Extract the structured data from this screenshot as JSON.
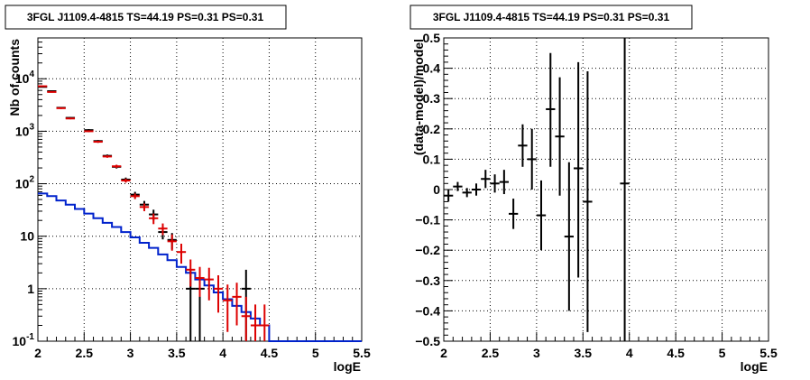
{
  "chart_data": [
    {
      "type": "line",
      "title": "3FGL J1109.4-4815 TS=44.19 PS=0.31 PS=0.31",
      "xlabel": "logE",
      "ylabel": "Nb of counts",
      "xlim": [
        2,
        5.5
      ],
      "ylim": [
        0.1,
        60000
      ],
      "yscale": "log",
      "grid": true,
      "x_ticks": [
        {
          "v": 2,
          "label": "2"
        },
        {
          "v": 2.5,
          "label": "2.5"
        },
        {
          "v": 3,
          "label": "3"
        },
        {
          "v": 3.5,
          "label": "3.5"
        },
        {
          "v": 4,
          "label": "4"
        },
        {
          "v": 4.5,
          "label": "4.5"
        },
        {
          "v": 5,
          "label": "5"
        },
        {
          "v": 5.5,
          "label": "5.5"
        }
      ],
      "y_ticks": [
        {
          "v": 0.1,
          "base": "10",
          "exp": "-1"
        },
        {
          "v": 1,
          "base": "1",
          "exp": ""
        },
        {
          "v": 10,
          "base": "10",
          "exp": ""
        },
        {
          "v": 100,
          "base": "10",
          "exp": "2"
        },
        {
          "v": 1000,
          "base": "10",
          "exp": "3"
        },
        {
          "v": 10000,
          "base": "10",
          "exp": "4"
        }
      ],
      "bin_width": 0.1,
      "series": [
        {
          "color": "#0022cc",
          "style": "step",
          "x": [
            2.05,
            2.15,
            2.25,
            2.35,
            2.45,
            2.55,
            2.65,
            2.75,
            2.85,
            2.95,
            3.05,
            3.15,
            3.25,
            3.35,
            3.45,
            3.55,
            3.65,
            3.75,
            3.85,
            3.95,
            4.05,
            4.15,
            4.25,
            4.35,
            4.45,
            4.55,
            4.65,
            4.75,
            4.85,
            4.95,
            5.05,
            5.15,
            5.25,
            5.35,
            5.45
          ],
          "y": [
            65,
            58,
            48,
            40,
            33,
            27,
            22,
            18,
            15,
            12,
            9.5,
            7.5,
            6,
            4.5,
            3.5,
            2.6,
            2,
            1.5,
            1.15,
            0.85,
            0.63,
            0.47,
            0.36,
            0.27,
            0.2,
            0.1,
            0.1,
            0.1,
            0.1,
            0.1,
            0.1,
            0.1,
            0.1,
            0.1,
            0.1
          ]
        },
        {
          "color": "#000000",
          "style": "points",
          "x": [
            2.05,
            2.15,
            2.25,
            2.35,
            2.55,
            2.65,
            2.75,
            2.85,
            2.95,
            3.05,
            3.15,
            3.25,
            3.35,
            3.45,
            3.65,
            3.75,
            4.25
          ],
          "y": [
            7000,
            5800,
            2800,
            1800,
            1050,
            650,
            340,
            210,
            120,
            62,
            40,
            26,
            12,
            8.5,
            1,
            1,
            1
          ],
          "ylo": [
            6850,
            5650,
            2700,
            1740,
            1000,
            620,
            320,
            195,
            110,
            54,
            33,
            20,
            8.7,
            5.6,
            0.1,
            0.1,
            0.1
          ],
          "yhi": [
            7150,
            5950,
            2900,
            1860,
            1100,
            680,
            360,
            225,
            131,
            70,
            47,
            32,
            15.5,
            11.5,
            2.3,
            2.3,
            2.3
          ]
        },
        {
          "color": "#dd0000",
          "style": "points",
          "x": [
            2.05,
            2.15,
            2.25,
            2.35,
            2.55,
            2.65,
            2.75,
            2.85,
            2.95,
            3.05,
            3.15,
            3.25,
            3.35,
            3.45,
            3.55,
            3.65,
            3.75,
            3.85,
            3.95,
            4.05,
            4.15,
            4.25,
            4.35,
            4.45
          ],
          "y": [
            7200,
            5600,
            2750,
            1750,
            1000,
            630,
            330,
            215,
            115,
            58,
            36,
            22,
            14,
            8,
            5,
            2.3,
            1.6,
            1.5,
            1.0,
            0.6,
            0.7,
            0.3,
            0.2,
            0.2
          ],
          "ylo": [
            7000,
            5450,
            2650,
            1690,
            960,
            600,
            312,
            200,
            105,
            51,
            30,
            17,
            10.5,
            5.3,
            3.0,
            1.1,
            0.7,
            0.6,
            0.35,
            0.15,
            0.2,
            0.1,
            0.1,
            0.1
          ],
          "yhi": [
            7400,
            5750,
            2850,
            1810,
            1040,
            660,
            348,
            230,
            125,
            65,
            42,
            27,
            17.5,
            10.8,
            7.2,
            3.6,
            2.6,
            2.5,
            1.8,
            1.2,
            1.3,
            0.7,
            0.5,
            0.5
          ]
        }
      ]
    },
    {
      "type": "scatter",
      "title": "3FGL J1109.4-4815 TS=44.19 PS=0.31 PS=0.31",
      "xlabel": "logE",
      "ylabel": "(data-model)/model",
      "xlim": [
        2,
        5.5
      ],
      "ylim": [
        -0.5,
        0.5
      ],
      "grid": true,
      "x_ticks": [
        {
          "v": 2,
          "label": "2"
        },
        {
          "v": 2.5,
          "label": "2.5"
        },
        {
          "v": 3,
          "label": "3"
        },
        {
          "v": 3.5,
          "label": "3.5"
        },
        {
          "v": 4,
          "label": "4"
        },
        {
          "v": 4.5,
          "label": "4.5"
        },
        {
          "v": 5,
          "label": "5"
        },
        {
          "v": 5.5,
          "label": "5.5"
        }
      ],
      "y_ticks": [
        {
          "v": -0.5,
          "label": "−0.5"
        },
        {
          "v": -0.4,
          "label": "−0.4"
        },
        {
          "v": -0.3,
          "label": "−0.3"
        },
        {
          "v": -0.2,
          "label": "−0.2"
        },
        {
          "v": -0.1,
          "label": "−0.1"
        },
        {
          "v": 0,
          "label": "0"
        },
        {
          "v": 0.1,
          "label": "0.1"
        },
        {
          "v": 0.2,
          "label": "0.2"
        },
        {
          "v": 0.3,
          "label": "0.3"
        },
        {
          "v": 0.4,
          "label": "0.4"
        },
        {
          "v": 0.5,
          "label": "0.5"
        }
      ],
      "bin_width": 0.1,
      "series": [
        {
          "color": "#000000",
          "style": "points",
          "x": [
            2.05,
            2.15,
            2.25,
            2.35,
            2.45,
            2.55,
            2.65,
            2.75,
            2.85,
            2.95,
            3.05,
            3.15,
            3.25,
            3.35,
            3.45,
            3.55,
            3.95
          ],
          "y": [
            -0.02,
            0.01,
            -0.01,
            0.0,
            0.035,
            0.02,
            0.025,
            -0.08,
            0.145,
            0.1,
            -0.085,
            0.265,
            0.175,
            -0.155,
            0.07,
            -0.04,
            0.02
          ],
          "ylo": [
            -0.04,
            -0.005,
            -0.025,
            -0.02,
            0.005,
            -0.01,
            -0.015,
            -0.13,
            0.075,
            0.0,
            -0.2,
            0.075,
            -0.02,
            -0.4,
            -0.29,
            -0.47,
            -0.5
          ],
          "yhi": [
            0.0,
            0.025,
            0.005,
            0.02,
            0.065,
            0.05,
            0.065,
            -0.03,
            0.215,
            0.2,
            0.03,
            0.45,
            0.37,
            0.09,
            0.42,
            0.39,
            0.5
          ]
        }
      ]
    }
  ]
}
